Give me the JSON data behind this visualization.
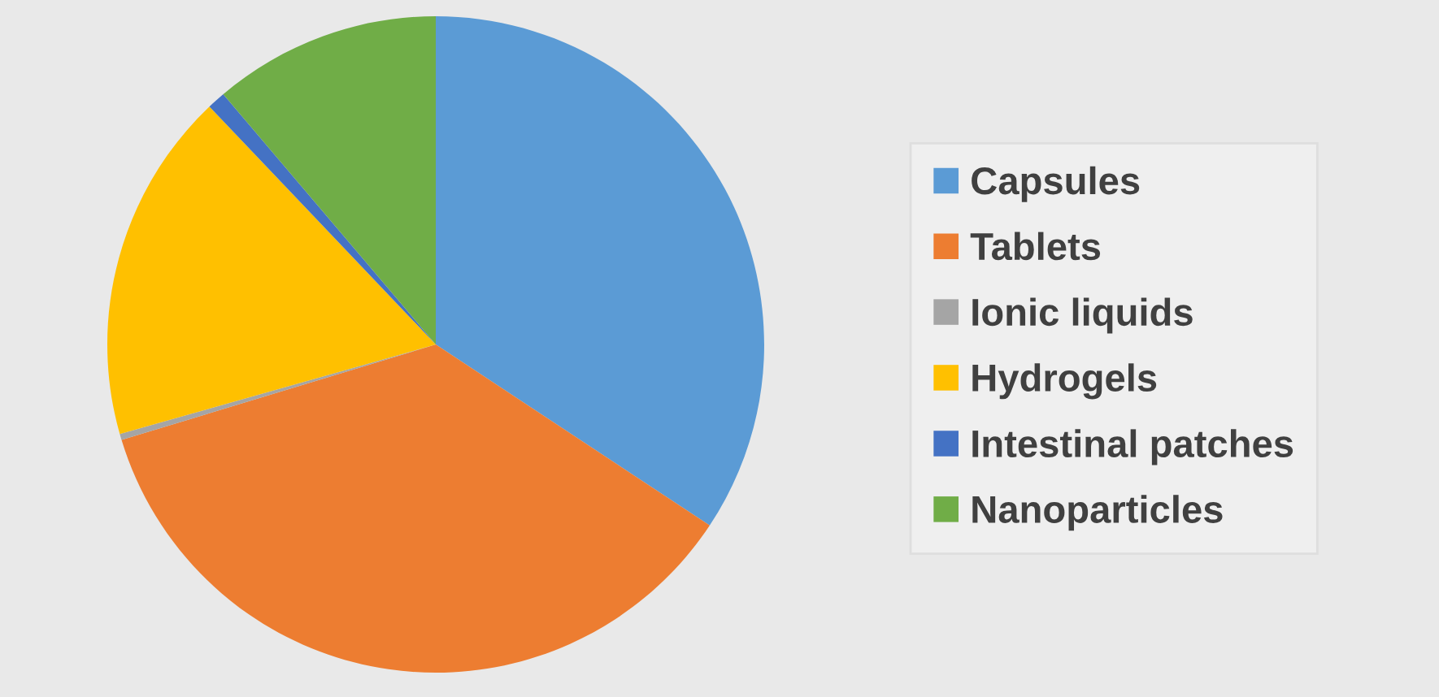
{
  "chart_data": {
    "type": "pie",
    "categories": [
      "Capsules",
      "Tablets",
      "Ionic liquids",
      "Hydrogels",
      "Intestinal patches",
      "Nanoparticles"
    ],
    "values": [
      34.3,
      36.0,
      0.3,
      17.3,
      0.9,
      11.2
    ],
    "colors": [
      "#5b9bd5",
      "#ed7d31",
      "#a5a5a5",
      "#ffc000",
      "#4472c4",
      "#70ad47"
    ],
    "legend": "right"
  }
}
